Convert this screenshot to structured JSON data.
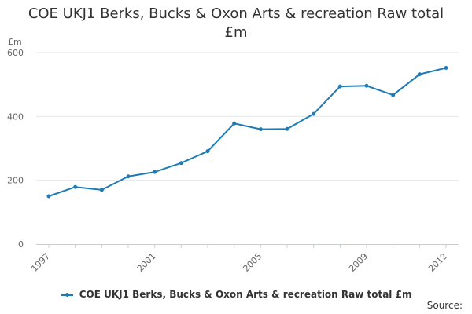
{
  "title_lines": [
    "COE UKJ1 Berks, Bucks & Oxon Arts & recreation Raw total",
    "£m"
  ],
  "source": "Source:",
  "colors": {
    "series": "#1f7bb6",
    "grid": "#e6e6e6",
    "axis": "#c0d0e0"
  },
  "chart_data": {
    "type": "line",
    "title": "COE UKJ1 Berks, Bucks & Oxon Arts & recreation Raw total £m",
    "ylabel": "£m",
    "xlabel": "",
    "x": [
      1997,
      1998,
      1999,
      2000,
      2001,
      2002,
      2003,
      2004,
      2005,
      2006,
      2007,
      2008,
      2009,
      2010,
      2011,
      2012
    ],
    "series": [
      {
        "name": "COE UKJ1 Berks, Bucks & Oxon Arts & recreation Raw total £m",
        "values": [
          150,
          179,
          170,
          212,
          226,
          254,
          291,
          378,
          360,
          361,
          408,
          494,
          496,
          467,
          532,
          552
        ]
      }
    ],
    "xticks": [
      1997,
      2001,
      2005,
      2009,
      2012
    ],
    "yticks": [
      0,
      200,
      400,
      600
    ],
    "ylim": [
      0,
      600
    ],
    "grid": true,
    "legend": "bottom-center"
  }
}
